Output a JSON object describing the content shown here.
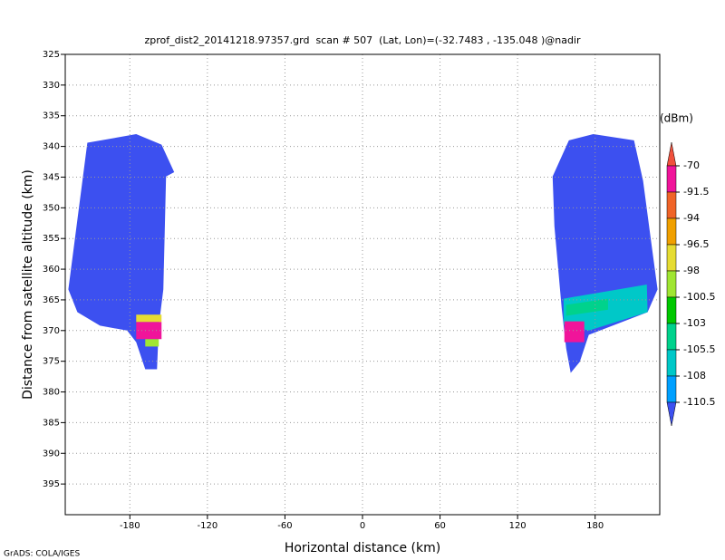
{
  "chart_data": {
    "type": "profile",
    "title": "zprof_dist2_20141218.97357.grd  scan # 507  (Lat, Lon)=(-32.7483 , -135.048 )@nadir",
    "x_label": "Horizontal distance (km)",
    "y_label": "Distance from satellite altitude (km)",
    "footer": "GrADS: COLA/IGES",
    "xlim": [
      -230,
      230
    ],
    "xticks": [
      -180,
      -120,
      -60,
      0,
      60,
      120,
      180
    ],
    "ylim": [
      325,
      400
    ],
    "y_inverted": true,
    "yticks": [
      325,
      330,
      335,
      340,
      345,
      350,
      355,
      360,
      365,
      370,
      375,
      380,
      385,
      390,
      395
    ],
    "grid": true,
    "colorbar": {
      "unit": "(dBm)",
      "levels": [
        -70,
        -91.5,
        -94,
        -96.5,
        -98,
        -100.5,
        -103,
        -105.5,
        -108,
        -110.5
      ],
      "colors": [
        "#f0503c",
        "#f0149a",
        "#f06428",
        "#f0a000",
        "#e6dc32",
        "#a0e632",
        "#00c800",
        "#00d28c",
        "#00c8c8",
        "#00a0ff",
        "#3c50f0"
      ]
    },
    "regions": [
      {
        "level": -112,
        "polygon": [
          [
            -227.6,
            363.3
          ],
          [
            -212.9,
            339.4
          ],
          [
            -175.1,
            338.0
          ],
          [
            -155.5,
            339.7
          ],
          [
            -145.7,
            344.2
          ],
          [
            -152.0,
            344.9
          ],
          [
            -154.1,
            363.3
          ],
          [
            -157.6,
            369.2
          ],
          [
            -159.0,
            376.3
          ],
          [
            -168.1,
            376.3
          ],
          [
            -175.1,
            371.9
          ],
          [
            -182.1,
            370.0
          ],
          [
            -203.1,
            369.2
          ],
          [
            -220.6,
            367.0
          ]
        ]
      },
      {
        "level": -97,
        "polygon": [
          [
            -175.1,
            367.4
          ],
          [
            -155.5,
            367.4
          ],
          [
            -155.5,
            368.6
          ],
          [
            -175.1,
            368.6
          ]
        ]
      },
      {
        "level": -80,
        "polygon": [
          [
            -175.1,
            368.6
          ],
          [
            -155.5,
            368.6
          ],
          [
            -155.5,
            371.4
          ],
          [
            -175.1,
            371.4
          ]
        ]
      },
      {
        "level": -99,
        "polygon": [
          [
            -168.1,
            371.4
          ],
          [
            -157.6,
            371.4
          ],
          [
            -157.6,
            372.6
          ],
          [
            -168.1,
            372.6
          ]
        ]
      },
      {
        "level": -112,
        "polygon": [
          [
            147.1,
            344.9
          ],
          [
            159.7,
            339.0
          ],
          [
            178.6,
            338.0
          ],
          [
            210.1,
            339.0
          ],
          [
            217.1,
            345.6
          ],
          [
            222.7,
            354.5
          ],
          [
            228.3,
            363.3
          ],
          [
            220.6,
            367.0
          ],
          [
            175.1,
            370.7
          ],
          [
            168.1,
            375.1
          ],
          [
            161.1,
            376.9
          ],
          [
            157.6,
            372.9
          ],
          [
            154.1,
            366.3
          ],
          [
            148.5,
            353.0
          ]
        ]
      },
      {
        "level": -107,
        "polygon": [
          [
            155.6,
            364.8
          ],
          [
            220.0,
            362.5
          ],
          [
            220.6,
            367.0
          ],
          [
            175.1,
            370.0
          ],
          [
            155.6,
            369.0
          ]
        ]
      },
      {
        "level": -104,
        "polygon": [
          [
            157.6,
            365.8
          ],
          [
            190.0,
            364.8
          ],
          [
            190.0,
            366.6
          ],
          [
            157.6,
            367.6
          ]
        ]
      },
      {
        "level": -80,
        "polygon": [
          [
            156.2,
            368.5
          ],
          [
            171.6,
            368.5
          ],
          [
            171.6,
            371.9
          ],
          [
            156.2,
            371.9
          ]
        ]
      }
    ]
  }
}
